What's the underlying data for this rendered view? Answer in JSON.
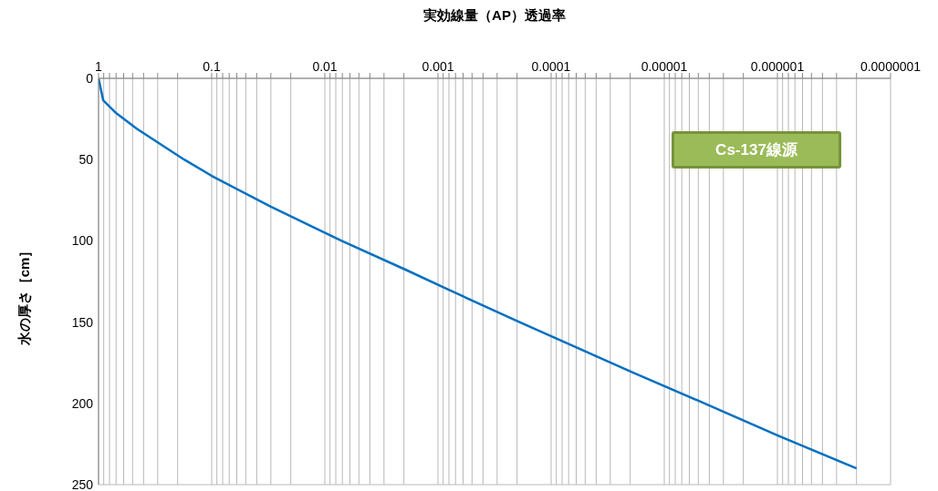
{
  "chart_data": {
    "type": "line",
    "xlabel": "実効線量（AP）透過率",
    "ylabel": "水の厚さ［cm］",
    "log": "x",
    "grid": true,
    "legend": false,
    "marker": "none",
    "line_style": "solid",
    "xlim": [
      1,
      1e-07
    ],
    "ylim": [
      250,
      0
    ],
    "xticks": [
      {
        "value": 1,
        "label": "1"
      },
      {
        "value": 0.1,
        "label": "0.1"
      },
      {
        "value": 0.01,
        "label": "0.01"
      },
      {
        "value": 0.001,
        "label": "0.001"
      },
      {
        "value": 0.0001,
        "label": "0.0001"
      },
      {
        "value": 1e-05,
        "label": "0.00001"
      },
      {
        "value": 1e-06,
        "label": "0.000001"
      },
      {
        "value": 1e-07,
        "label": "0.0000001"
      },
      {
        "value": 0.9,
        "label": null
      },
      {
        "value": 0.8,
        "label": null
      },
      {
        "value": 0.7,
        "label": null
      },
      {
        "value": 0.6,
        "label": null
      },
      {
        "value": 0.5,
        "label": null
      },
      {
        "value": 0.4,
        "label": null
      },
      {
        "value": 0.3,
        "label": null
      },
      {
        "value": 0.2,
        "label": null
      },
      {
        "value": 0.09,
        "label": null
      },
      {
        "value": 0.08,
        "label": null
      },
      {
        "value": 0.07,
        "label": null
      },
      {
        "value": 0.06,
        "label": null
      },
      {
        "value": 0.05,
        "label": null
      },
      {
        "value": 0.04,
        "label": null
      },
      {
        "value": 0.03,
        "label": null
      },
      {
        "value": 0.02,
        "label": null
      },
      {
        "value": 0.009,
        "label": null
      },
      {
        "value": 0.008,
        "label": null
      },
      {
        "value": 0.007,
        "label": null
      },
      {
        "value": 0.006,
        "label": null
      },
      {
        "value": 0.005,
        "label": null
      },
      {
        "value": 0.004,
        "label": null
      },
      {
        "value": 0.003,
        "label": null
      },
      {
        "value": 0.002,
        "label": null
      },
      {
        "value": 0.0009,
        "label": null
      },
      {
        "value": 0.0008,
        "label": null
      },
      {
        "value": 0.0007,
        "label": null
      },
      {
        "value": 0.0006,
        "label": null
      },
      {
        "value": 0.0005,
        "label": null
      },
      {
        "value": 0.0004,
        "label": null
      },
      {
        "value": 0.0003,
        "label": null
      },
      {
        "value": 0.0002,
        "label": null
      },
      {
        "value": 9e-05,
        "label": null
      },
      {
        "value": 8e-05,
        "label": null
      },
      {
        "value": 7e-05,
        "label": null
      },
      {
        "value": 6e-05,
        "label": null
      },
      {
        "value": 5e-05,
        "label": null
      },
      {
        "value": 4e-05,
        "label": null
      },
      {
        "value": 3e-05,
        "label": null
      },
      {
        "value": 2e-05,
        "label": null
      },
      {
        "value": 9e-06,
        "label": null
      },
      {
        "value": 8e-06,
        "label": null
      },
      {
        "value": 7e-06,
        "label": null
      },
      {
        "value": 6e-06,
        "label": null
      },
      {
        "value": 5e-06,
        "label": null
      },
      {
        "value": 4e-06,
        "label": null
      },
      {
        "value": 3e-06,
        "label": null
      },
      {
        "value": 2e-06,
        "label": null
      },
      {
        "value": 9e-07,
        "label": null
      },
      {
        "value": 8e-07,
        "label": null
      },
      {
        "value": 7e-07,
        "label": null
      },
      {
        "value": 6e-07,
        "label": null
      },
      {
        "value": 5e-07,
        "label": null
      },
      {
        "value": 4e-07,
        "label": null
      },
      {
        "value": 3e-07,
        "label": null
      },
      {
        "value": 2e-07,
        "label": null
      }
    ],
    "yticks": [
      0,
      50,
      100,
      150,
      200,
      250
    ],
    "series": [
      {
        "color": "#0070c0",
        "x": [
          1,
          0.91,
          0.71,
          0.46,
          0.175,
          0.1,
          0.03,
          0.0071,
          0.0019,
          0.00081,
          0.00019,
          1.9e-05,
          4.4e-06,
          9.8e-07,
          2e-07
        ],
        "values": [
          0,
          13.5,
          21,
          31,
          50,
          60,
          79,
          100,
          118,
          130,
          150,
          181,
          200,
          220,
          240
        ]
      }
    ],
    "annotations": [
      "Cs-137線源"
    ]
  }
}
